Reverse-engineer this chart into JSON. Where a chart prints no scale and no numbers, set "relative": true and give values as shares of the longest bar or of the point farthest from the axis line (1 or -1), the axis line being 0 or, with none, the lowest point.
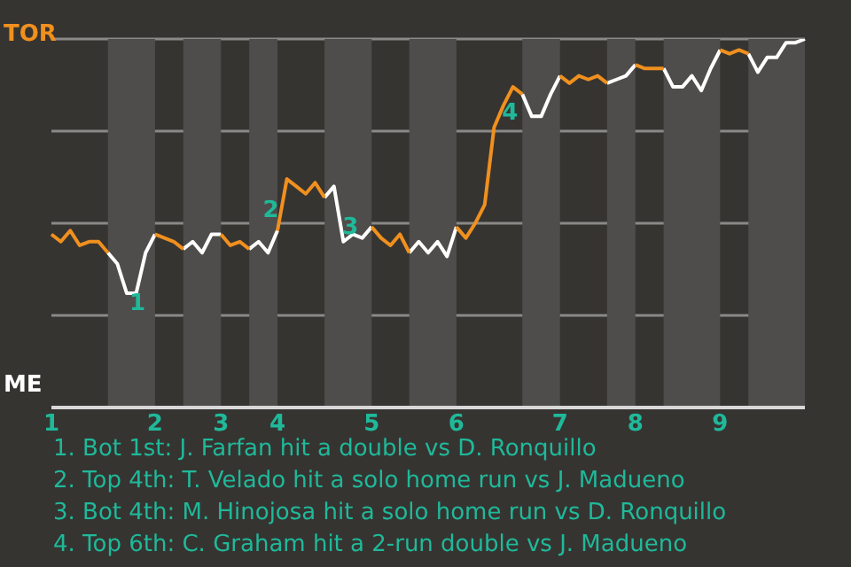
{
  "chart_data": {
    "type": "line",
    "relative": true,
    "legend": "left",
    "grid": "y",
    "line_style": "solid",
    "marker": "none",
    "categories": [
      "1",
      null,
      null,
      null,
      null,
      null,
      null,
      null,
      null,
      null,
      null,
      "2",
      null,
      null,
      null,
      null,
      null,
      null,
      "3",
      null,
      null,
      null,
      null,
      null,
      "4",
      null,
      null,
      null,
      null,
      null,
      null,
      null,
      null,
      null,
      "5",
      null,
      null,
      null,
      null,
      null,
      null,
      null,
      null,
      "6",
      null,
      null,
      null,
      null,
      null,
      null,
      null,
      null,
      null,
      null,
      "7",
      null,
      null,
      null,
      null,
      null,
      null,
      null,
      "8",
      null,
      null,
      null,
      null,
      null,
      null,
      null,
      null,
      "9",
      null,
      null,
      null,
      null,
      null,
      null,
      null,
      null,
      null
    ],
    "series": [
      {
        "name": "TOR",
        "color": "#f0901e",
        "values": [
          0.47,
          0.45,
          0.48,
          0.44,
          0.45,
          0.45,
          0.42,
          null,
          null,
          null,
          null,
          0.47,
          0.46,
          0.45,
          0.43,
          null,
          null,
          null,
          0.47,
          0.44,
          0.45,
          0.43,
          null,
          null,
          0.48,
          0.62,
          0.6,
          0.58,
          0.61,
          0.57,
          null,
          null,
          null,
          null,
          0.49,
          0.46,
          0.44,
          0.47,
          0.42,
          null,
          null,
          null,
          null,
          0.49,
          0.46,
          0.5,
          0.55,
          0.76,
          0.82,
          0.87,
          0.85,
          null,
          null,
          null,
          0.9,
          0.88,
          0.9,
          0.89,
          0.9,
          0.88,
          null,
          null,
          0.93,
          0.92,
          0.92,
          0.92,
          null,
          null,
          null,
          null,
          null,
          0.97,
          0.96,
          0.97,
          0.96,
          null,
          null,
          null,
          null,
          null,
          null
        ]
      },
      {
        "name": "ME",
        "color": "#ffffff",
        "values": [
          null,
          null,
          null,
          null,
          null,
          null,
          0.42,
          0.39,
          0.31,
          0.31,
          0.42,
          0.47,
          null,
          null,
          0.43,
          0.45,
          0.42,
          0.47,
          0.47,
          null,
          null,
          0.43,
          0.45,
          0.42,
          0.48,
          null,
          null,
          null,
          null,
          0.57,
          0.6,
          0.45,
          0.47,
          0.46,
          0.49,
          null,
          null,
          null,
          0.42,
          0.45,
          0.42,
          0.45,
          0.41,
          0.49,
          null,
          null,
          null,
          null,
          null,
          null,
          0.85,
          0.79,
          0.79,
          0.85,
          0.9,
          null,
          null,
          null,
          null,
          0.88,
          0.89,
          0.9,
          0.93,
          null,
          null,
          0.92,
          0.87,
          0.87,
          0.9,
          0.86,
          0.92,
          0.97,
          null,
          null,
          0.96,
          0.91,
          0.95,
          0.95,
          0.99,
          0.99,
          1
        ]
      }
    ],
    "annotations": [
      "1",
      "2",
      "3",
      "4",
      "1. Bot 1st: J. Farfan hit a double vs D. Ronquillo",
      "2. Top 4th: T. Velado hit a solo home run vs J. Madueno",
      "3. Bot 4th: M. Hinojosa hit a solo home run vs D. Ronquillo",
      "4. Top 6th: C. Graham hit a 2-run double vs J. Madueno"
    ]
  }
}
